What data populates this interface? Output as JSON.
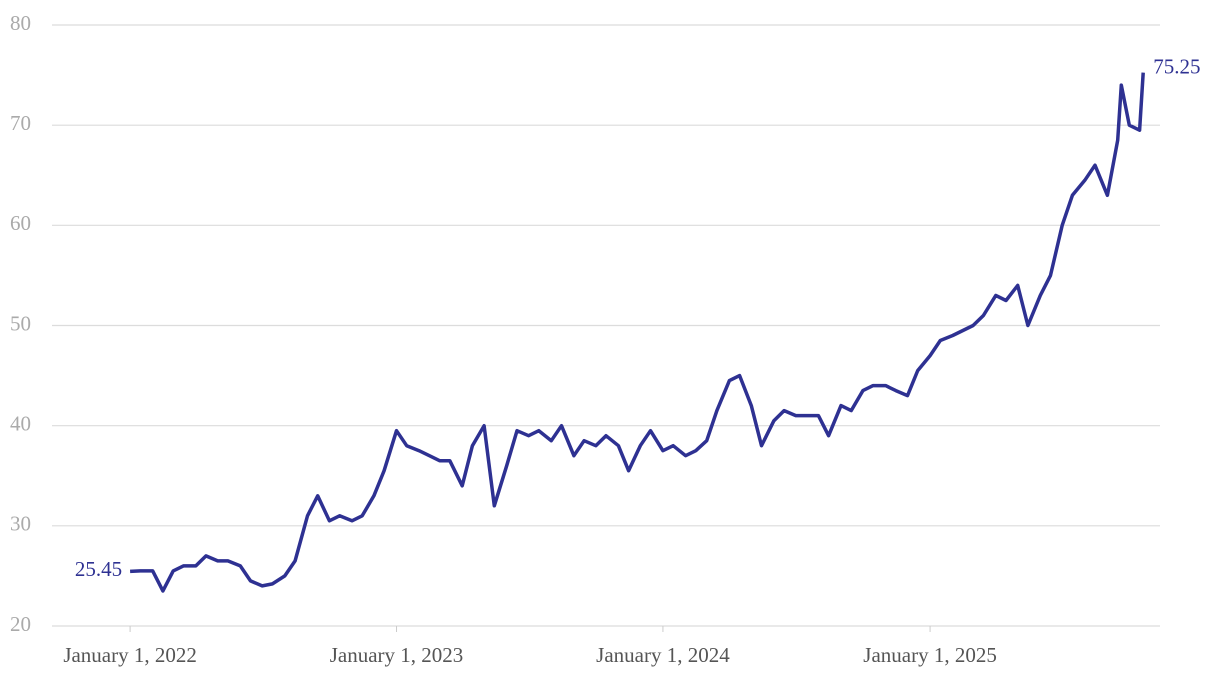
{
  "chart_data": {
    "type": "line",
    "x": [
      "2022-01-01",
      "2022-01-15",
      "2022-02-01",
      "2022-02-15",
      "2022-03-01",
      "2022-03-15",
      "2022-04-01",
      "2022-04-15",
      "2022-05-01",
      "2022-05-15",
      "2022-06-01",
      "2022-06-15",
      "2022-07-01",
      "2022-07-15",
      "2022-08-01",
      "2022-08-15",
      "2022-09-01",
      "2022-09-15",
      "2022-10-01",
      "2022-10-15",
      "2022-11-01",
      "2022-11-15",
      "2022-12-01",
      "2022-12-15",
      "2023-01-01",
      "2023-01-15",
      "2023-02-01",
      "2023-02-15",
      "2023-03-01",
      "2023-03-15",
      "2023-04-01",
      "2023-04-15",
      "2023-05-01",
      "2023-05-15",
      "2023-06-01",
      "2023-06-15",
      "2023-07-01",
      "2023-07-15",
      "2023-08-01",
      "2023-08-15",
      "2023-09-01",
      "2023-09-15",
      "2023-10-01",
      "2023-10-15",
      "2023-11-01",
      "2023-11-15",
      "2023-12-01",
      "2023-12-15",
      "2024-01-01",
      "2024-01-15",
      "2024-02-01",
      "2024-02-15",
      "2024-03-01",
      "2024-03-15",
      "2024-04-01",
      "2024-04-15",
      "2024-05-01",
      "2024-05-15",
      "2024-06-01",
      "2024-06-15",
      "2024-07-01",
      "2024-07-15",
      "2024-08-01",
      "2024-08-15",
      "2024-09-01",
      "2024-09-15",
      "2024-10-01",
      "2024-10-15",
      "2024-11-01",
      "2024-11-15",
      "2024-12-01",
      "2024-12-15",
      "2025-01-01",
      "2025-01-15",
      "2025-02-01",
      "2025-02-15",
      "2025-03-01",
      "2025-03-15",
      "2025-04-01",
      "2025-04-15",
      "2025-05-01",
      "2025-05-15",
      "2025-06-01",
      "2025-06-15",
      "2025-07-01",
      "2025-07-15",
      "2025-08-01",
      "2025-08-15",
      "2025-09-01",
      "2025-09-15",
      "2025-09-20",
      "2025-10-01",
      "2025-10-15",
      "2025-10-20"
    ],
    "series": [
      {
        "color": "#2e3192",
        "values": [
          25.45,
          25.5,
          25.5,
          23.5,
          25.5,
          26,
          26,
          27,
          26.5,
          26.5,
          26,
          24.5,
          24,
          24.2,
          25,
          26.5,
          31,
          33,
          30.5,
          31,
          30.5,
          31,
          33,
          35.5,
          39.5,
          38,
          37.5,
          37,
          36.5,
          36.5,
          34,
          38,
          40,
          32,
          36,
          39.5,
          39,
          39.5,
          38.5,
          40,
          37,
          38.5,
          38,
          39,
          38,
          35.5,
          38,
          39.5,
          37.5,
          38,
          37,
          37.5,
          38.5,
          41.5,
          44.5,
          45,
          42,
          38,
          40.5,
          41.5,
          41,
          41,
          41,
          39,
          42,
          41.5,
          43.5,
          44,
          44,
          43.5,
          43,
          45.5,
          47,
          48.5,
          49,
          49.5,
          50,
          51,
          53,
          52.5,
          54,
          50,
          53,
          55,
          60,
          63,
          64.5,
          66,
          63,
          68.5,
          74,
          70,
          69.5,
          75.25
        ]
      }
    ],
    "xlim": [
      "2021-09-16",
      "2025-11-12"
    ],
    "xticks": [
      {
        "value": "2022-01-01",
        "label": "January 1, 2022"
      },
      {
        "value": "2023-01-01",
        "label": "January 1, 2023"
      },
      {
        "value": "2024-01-01",
        "label": "January 1, 2024"
      },
      {
        "value": "2025-01-01",
        "label": "January 1, 2025"
      }
    ],
    "ylim": [
      20,
      80
    ],
    "yticks": [
      20,
      30,
      40,
      50,
      60,
      70,
      80
    ],
    "grid": true,
    "end_labels": true
  }
}
